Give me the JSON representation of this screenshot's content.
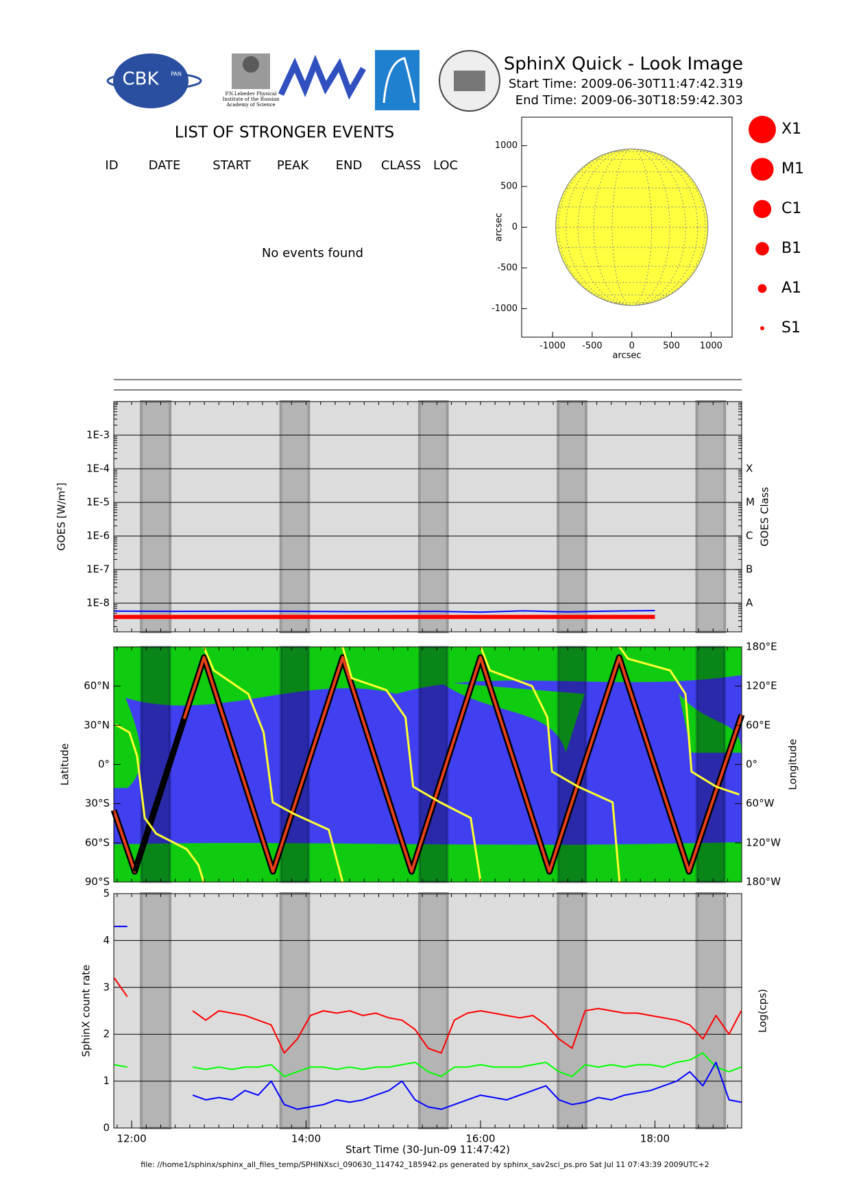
{
  "header": {
    "title": "SphinX Quick - Look Image",
    "start_time": "Start Time: 2009-06-30T11:47:42.319",
    "end_time": "End Time: 2009-06-30T18:59:42.303"
  },
  "logos": {
    "cbk": "CBK",
    "pan": "PAN",
    "lebedev": [
      "P.N.Lebedev Physical",
      "Institute of the Russian",
      "Academy of Science"
    ]
  },
  "events": {
    "title": "LIST OF STRONGER EVENTS",
    "columns": [
      "ID",
      "DATE",
      "START",
      "PEAK",
      "END",
      "CLASS",
      "LOC"
    ],
    "message": "No events found"
  },
  "chart_data": [
    {
      "type": "disk",
      "xlim": [
        -1390,
        1265
      ],
      "ylim": [
        -1350,
        1350
      ],
      "xticks": [
        -1000,
        -500,
        0,
        500,
        1000
      ],
      "yticks": [
        1000,
        500,
        0,
        -500,
        -1000
      ],
      "xlabel": "arcsec",
      "ylabel": "arcsec",
      "sun_radius": 960,
      "color": "#ffff40",
      "legend": {
        "labels": [
          "X1",
          "M1",
          "C1",
          "B1",
          "A1",
          "S1"
        ],
        "color": "#ff0000"
      }
    },
    {
      "type": "line",
      "log_scale": true,
      "grid": true,
      "ylabel": "GOES [W/m²]",
      "y2label": "GOES Class",
      "xlim": [
        11.795,
        18.995
      ],
      "ylim": [
        1.4e-09,
        0.01
      ],
      "yticks": [
        {
          "value": 0.001,
          "label": "1E-3"
        },
        {
          "value": 0.0001,
          "label": "1E-4"
        },
        {
          "value": 1e-05,
          "label": "1E-5"
        },
        {
          "value": 1e-06,
          "label": "1E-6"
        },
        {
          "value": 1e-07,
          "label": "1E-7"
        },
        {
          "value": 1e-08,
          "label": "1E-8"
        }
      ],
      "y2ticks": [
        {
          "value": 0.0001,
          "label": "X"
        },
        {
          "value": 1e-05,
          "label": "M"
        },
        {
          "value": 1e-06,
          "label": "C"
        },
        {
          "value": 1e-07,
          "label": "B"
        },
        {
          "value": 1e-08,
          "label": "A"
        }
      ],
      "shaded": [
        [
          12.11,
          12.44
        ],
        [
          13.71,
          14.03
        ],
        [
          15.3,
          15.62
        ],
        [
          16.89,
          17.21
        ],
        [
          18.48,
          18.8
        ]
      ],
      "series": [
        {
          "color": "#ff0000",
          "x": [
            11.8,
            18.0
          ],
          "values": [
            3.9e-09,
            3.9e-09
          ]
        },
        {
          "color": "#0000ff",
          "x": [
            11.8,
            12.5,
            13.5,
            14.5,
            15.5,
            16.0,
            16.5,
            17.0,
            17.5,
            18.0
          ],
          "values": [
            5.8e-09,
            5.7e-09,
            5.8e-09,
            5.6e-09,
            5.7e-09,
            5.4e-09,
            5.9e-09,
            5.5e-09,
            5.8e-09,
            6e-09
          ]
        }
      ]
    },
    {
      "type": "map",
      "ylabel": "Latitude",
      "y2label": "Longitude",
      "xlim": [
        11.795,
        18.995
      ],
      "ylim": [
        -90,
        90
      ],
      "y2lim": [
        -180,
        180
      ],
      "yticks": [
        {
          "value": 60,
          "label": "60°N"
        },
        {
          "value": 30,
          "label": "30°N"
        },
        {
          "value": 0,
          "label": "0°"
        },
        {
          "value": -30,
          "label": "30°S"
        },
        {
          "value": -60,
          "label": "60°S"
        },
        {
          "value": -90,
          "label": "90°S"
        }
      ],
      "y2ticks": [
        {
          "value": 180,
          "label": "180°E"
        },
        {
          "value": 120,
          "label": "120°E"
        },
        {
          "value": 60,
          "label": "60°E"
        },
        {
          "value": 0,
          "label": "0°"
        },
        {
          "value": -60,
          "label": "60°W"
        },
        {
          "value": -120,
          "label": "120°W"
        },
        {
          "value": -180,
          "label": "180°W"
        }
      ],
      "shaded": [
        [
          12.11,
          12.44
        ],
        [
          13.71,
          14.03
        ],
        [
          15.3,
          15.62
        ],
        [
          16.89,
          17.21
        ],
        [
          18.48,
          18.8
        ]
      ],
      "series": [
        {
          "color": "#e8401a",
          "x": [
            11.795,
            12.035,
            12.83,
            13.62,
            14.42,
            15.21,
            16.0,
            16.79,
            17.59,
            18.39,
            18.995
          ],
          "values": [
            -35,
            -82,
            82,
            -82,
            82,
            -82,
            82,
            -82,
            82,
            -82,
            38
          ]
        },
        {
          "color": "#000000",
          "x": [
            12.035,
            12.6
          ],
          "values": [
            -82,
            35
          ]
        },
        {
          "color": "#ffff30",
          "axis": "y2",
          "x": [
            11.815,
            11.974,
            12.062,
            12.15,
            12.281,
            12.633,
            12.765,
            12.827,
            12.827,
            12.827,
            12.941,
            13.337,
            13.513,
            13.618,
            13.865,
            14.26,
            14.419,
            14.419,
            14.419,
            14.524,
            14.92,
            15.14,
            15.228,
            15.536,
            15.888,
            16.002,
            16.002,
            16.002,
            16.108,
            16.591,
            16.767,
            16.82,
            17.119,
            17.515,
            17.594,
            17.594,
            17.594,
            17.69,
            18.174,
            18.35,
            18.42,
            18.702,
            18.966
          ],
          "values": [
            61,
            49,
            13,
            -82,
            -106,
            -130,
            -154,
            -180,
            null,
            180,
            144,
            108,
            49,
            -58,
            -76,
            -100,
            -180,
            null,
            180,
            132,
            114,
            72,
            -34,
            -58,
            -82,
            -180,
            null,
            180,
            144,
            120,
            72,
            -11,
            -34,
            -58,
            -180,
            null,
            180,
            162,
            144,
            108,
            -11,
            -34,
            -46
          ]
        }
      ]
    },
    {
      "type": "line",
      "grid": true,
      "ylabel": "SphinX count rate",
      "y2label": "Log(cps)",
      "xlabel": "Start Time (30-Jun-09 11:47:42)",
      "xlim": [
        11.795,
        18.995
      ],
      "ylim": [
        0,
        5
      ],
      "yticks": [
        0,
        1,
        2,
        3,
        4,
        5
      ],
      "xticks": [
        {
          "value": 12,
          "label": "12:00"
        },
        {
          "value": 14,
          "label": "14:00"
        },
        {
          "value": 16,
          "label": "16:00"
        },
        {
          "value": 18,
          "label": "18:00"
        }
      ],
      "shaded": [
        [
          12.11,
          12.44
        ],
        [
          13.71,
          14.03
        ],
        [
          15.3,
          15.62
        ],
        [
          16.89,
          17.21
        ],
        [
          18.48,
          18.8
        ]
      ],
      "x": [
        11.8,
        11.95,
        12.1,
        12.25,
        12.4,
        12.55,
        12.7,
        12.85,
        13.0,
        13.15,
        13.3,
        13.45,
        13.6,
        13.75,
        13.9,
        14.05,
        14.2,
        14.35,
        14.5,
        14.65,
        14.8,
        14.95,
        15.1,
        15.25,
        15.4,
        15.55,
        15.7,
        15.85,
        16.0,
        16.15,
        16.3,
        16.45,
        16.6,
        16.75,
        16.9,
        17.05,
        17.2,
        17.35,
        17.5,
        17.65,
        17.8,
        17.95,
        18.1,
        18.25,
        18.4,
        18.55,
        18.7,
        18.85,
        18.99
      ],
      "series": [
        {
          "color": "#ff0000",
          "values": [
            3.2,
            2.8,
            null,
            null,
            null,
            null,
            2.5,
            2.3,
            2.5,
            2.45,
            2.4,
            2.3,
            2.2,
            1.6,
            1.9,
            2.4,
            2.5,
            2.45,
            2.5,
            2.4,
            2.45,
            2.35,
            2.3,
            2.1,
            1.7,
            1.6,
            2.3,
            2.45,
            2.5,
            2.45,
            2.4,
            2.35,
            2.4,
            2.2,
            1.9,
            1.7,
            2.5,
            2.55,
            2.5,
            2.45,
            2.45,
            2.4,
            2.35,
            2.3,
            2.2,
            1.9,
            2.4,
            2.0,
            2.5
          ]
        },
        {
          "color": "#00ff00",
          "values": [
            1.35,
            1.3,
            null,
            null,
            null,
            null,
            1.3,
            1.25,
            1.3,
            1.25,
            1.3,
            1.3,
            1.35,
            1.1,
            1.2,
            1.3,
            1.3,
            1.25,
            1.3,
            1.25,
            1.3,
            1.3,
            1.35,
            1.4,
            1.2,
            1.1,
            1.3,
            1.3,
            1.35,
            1.3,
            1.3,
            1.3,
            1.35,
            1.4,
            1.2,
            1.1,
            1.35,
            1.3,
            1.35,
            1.3,
            1.35,
            1.35,
            1.3,
            1.4,
            1.45,
            1.6,
            1.3,
            1.2,
            1.3
          ]
        },
        {
          "color": "#0000ff",
          "values": [
            4.3,
            4.3,
            null,
            null,
            null,
            null,
            0.7,
            0.6,
            0.65,
            0.6,
            0.8,
            0.7,
            1.0,
            0.5,
            0.4,
            0.45,
            0.5,
            0.6,
            0.55,
            0.6,
            0.7,
            0.8,
            1.0,
            0.6,
            0.45,
            0.4,
            0.5,
            0.6,
            0.7,
            0.65,
            0.6,
            0.7,
            0.8,
            0.9,
            0.6,
            0.5,
            0.55,
            0.65,
            0.6,
            0.7,
            0.75,
            0.8,
            0.9,
            1.0,
            1.2,
            0.9,
            1.4,
            0.6,
            0.55
          ]
        }
      ]
    }
  ],
  "footer": "file: //home1/sphinx/sphinx_all_files_temp/SPHINXsci_090630_114742_185942.ps generated by sphinx_sav2sci_ps.pro Sat Jul 11 07:43:39 2009UTC+2"
}
